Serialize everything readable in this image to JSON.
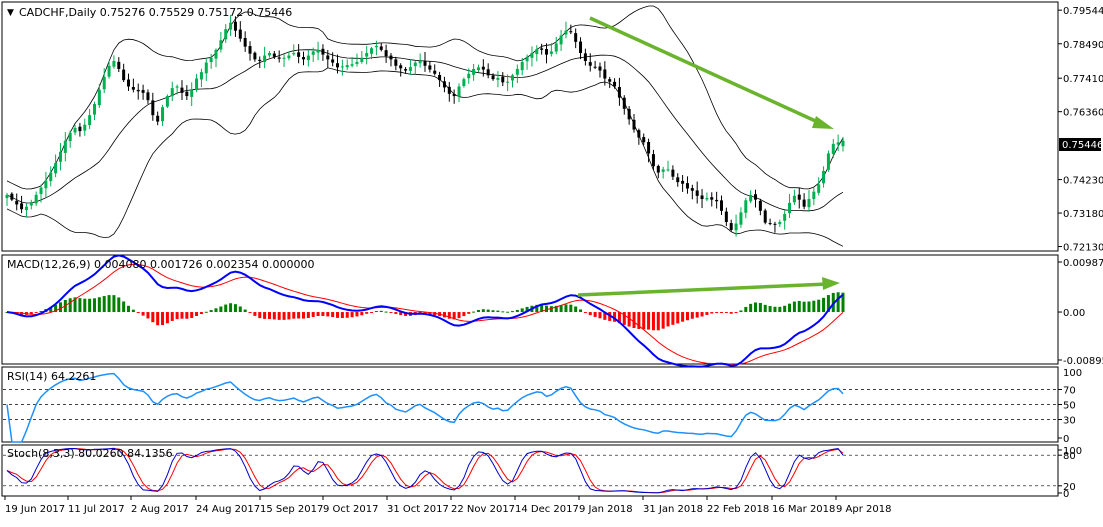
{
  "header": {
    "symbol_text": "CADCHF,Daily",
    "ohlc_text": "0.75276 0.75529 0.75172 0.75446",
    "current_price_label": "0.75446"
  },
  "colors": {
    "background": "#ffffff",
    "axis": "#000000",
    "bull_candle": "#00b050",
    "bear_candle": "#000000",
    "bollinger": "#000000",
    "macd_line": "#0000ff",
    "signal_line": "#ff0000",
    "hist_positive": "#008000",
    "hist_negative": "#ff0000",
    "rsi_line": "#1e90ff",
    "stoch_main": "#0000cd",
    "stoch_signal": "#ff0000",
    "trendline": "#6ab42d"
  },
  "chart_data": [
    {
      "type": "candlestick",
      "title": "CADCHF,Daily",
      "ohlc_last": {
        "open": 0.75276,
        "high": 0.75529,
        "low": 0.75172,
        "close": 0.75446
      },
      "ylim": [
        0.7199,
        0.798
      ],
      "y_ticks": [
        "0.79544",
        "0.78490",
        "0.77410",
        "0.76360",
        "0.75446",
        "0.74230",
        "0.73180",
        "0.72130"
      ],
      "x_ticks": [
        "19 Jun 2017",
        "11 Jul 2017",
        "2 Aug 2017",
        "24 Aug 2017",
        "15 Sep 2017",
        "9 Oct 2017",
        "31 Oct 2017",
        "22 Nov 2017",
        "14 Dec 2017",
        "9 Jan 2018",
        "31 Jan 2018",
        "22 Feb 2018",
        "16 Mar 2018",
        "9 Apr 2018"
      ],
      "close_series": [
        0.7375,
        0.736,
        0.7345,
        0.733,
        0.7338,
        0.7352,
        0.7375,
        0.7398,
        0.742,
        0.7445,
        0.7475,
        0.751,
        0.7545,
        0.757,
        0.7585,
        0.7575,
        0.7595,
        0.7625,
        0.766,
        0.7705,
        0.7745,
        0.778,
        0.7795,
        0.777,
        0.7735,
        0.7715,
        0.7705,
        0.77,
        0.7695,
        0.7672,
        0.7625,
        0.7605,
        0.765,
        0.7685,
        0.771,
        0.7715,
        0.7695,
        0.7685,
        0.7705,
        0.774,
        0.776,
        0.779,
        0.7805,
        0.783,
        0.786,
        0.7895,
        0.7915,
        0.789,
        0.7865,
        0.784,
        0.7818,
        0.78,
        0.7795,
        0.7812,
        0.782,
        0.7808,
        0.7802,
        0.7805,
        0.7812,
        0.782,
        0.7808,
        0.78,
        0.7812,
        0.7825,
        0.783,
        0.7815,
        0.78,
        0.779,
        0.7775,
        0.7778,
        0.7782,
        0.7785,
        0.7792,
        0.7805,
        0.782,
        0.7835,
        0.7842,
        0.783,
        0.781,
        0.78,
        0.778,
        0.7772,
        0.7765,
        0.7776,
        0.779,
        0.7795,
        0.778,
        0.7768,
        0.7755,
        0.7735,
        0.7712,
        0.7692,
        0.7685,
        0.7715,
        0.7738,
        0.7755,
        0.777,
        0.7775,
        0.7768,
        0.775,
        0.7738,
        0.7742,
        0.7728,
        0.773,
        0.775,
        0.777,
        0.7792,
        0.7808,
        0.782,
        0.7832,
        0.783,
        0.7815,
        0.7825,
        0.785,
        0.7875,
        0.789,
        0.7885,
        0.7855,
        0.782,
        0.7795,
        0.778,
        0.7775,
        0.7765,
        0.774,
        0.773,
        0.7715,
        0.768,
        0.7645,
        0.7612,
        0.758,
        0.7555,
        0.754,
        0.7505,
        0.7465,
        0.7445,
        0.7455,
        0.7455,
        0.7432,
        0.7415,
        0.741,
        0.7395,
        0.7388,
        0.7372,
        0.7362,
        0.7365,
        0.736,
        0.7355,
        0.7325,
        0.729,
        0.7265,
        0.7285,
        0.732,
        0.7358,
        0.7375,
        0.736,
        0.7325,
        0.7288,
        0.7285,
        0.7283,
        0.729,
        0.7315,
        0.735,
        0.7372,
        0.736,
        0.7338,
        0.7362,
        0.7385,
        0.7408,
        0.745,
        0.7505,
        0.7535,
        0.754,
        0.7545
      ],
      "series": [
        {
          "name": "CADCHF",
          "role": "price"
        },
        {
          "name": "Bollinger upper"
        },
        {
          "name": "Bollinger middle"
        },
        {
          "name": "Bollinger lower"
        }
      ]
    },
    {
      "type": "bar+line",
      "title": "MACD(12,26,9) 0.004080 0.001726 0.002354 0.000000",
      "values_last": {
        "macd": 0.00408,
        "signal": 0.001726,
        "histogram": 0.002354
      },
      "ylim": [
        -0.0092,
        0.0101
      ],
      "y_ticks": [
        "0.009873",
        "0.00",
        "-0.008956"
      ],
      "series": [
        {
          "name": "MACD",
          "color": "#0000ff"
        },
        {
          "name": "Signal",
          "color": "#ff0000"
        },
        {
          "name": "Histogram"
        }
      ]
    },
    {
      "type": "line",
      "title": "RSI(14) 64.2261",
      "value_last": 64.2261,
      "ylim": [
        0,
        100
      ],
      "y_ticks": [
        "70",
        "50",
        "30",
        "0"
      ],
      "top_tick": "100",
      "levels": [
        70,
        50,
        30
      ]
    },
    {
      "type": "line",
      "title": "Stoch(8,3,3) 80.0260 84.1356",
      "values_last": {
        "main": 80.026,
        "signal": 84.1356
      },
      "ylim": [
        0,
        100
      ],
      "y_ticks": [
        "100",
        "80",
        "20",
        "0"
      ],
      "levels": [
        80,
        20
      ]
    }
  ]
}
